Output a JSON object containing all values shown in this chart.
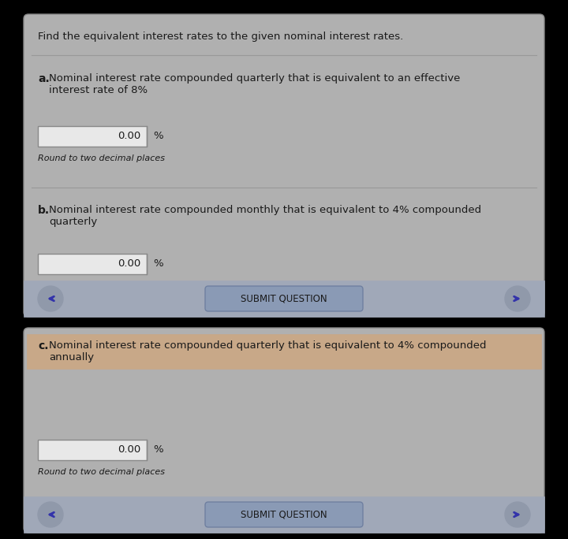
{
  "bg_color": "#000000",
  "panel1_bg": "#b0b0b0",
  "panel2_bg": "#b0b0b0",
  "header_text": "Find the equivalent interest rates to the given nominal interest rates.",
  "part_a_text": "Nominal interest rate compounded quarterly that is equivalent to an effective\ninterest rate of 8%",
  "part_b_text": "Nominal interest rate compounded monthly that is equivalent to 4% compounded\nquarterly",
  "part_c_text": "Nominal interest rate compounded quarterly that is equivalent to 4% compounded\nannually",
  "input_value": "0.00",
  "percent_label": "%",
  "round_text": "Round to two decimal places",
  "submit_text": "SUBMIT QUESTION",
  "submit_bg": "#8a9ab5",
  "nav_bg": "#a0a8b8",
  "text_color": "#1a1a1a",
  "input_bg": "#e8e8e8",
  "input_border": "#888888",
  "divider_color": "#999999",
  "highlight_color": "#c8a888",
  "arrow_color": "#3333aa",
  "panel_border": "#888888",
  "circle_color": "#9099aa",
  "submit_border": "#7080a0"
}
